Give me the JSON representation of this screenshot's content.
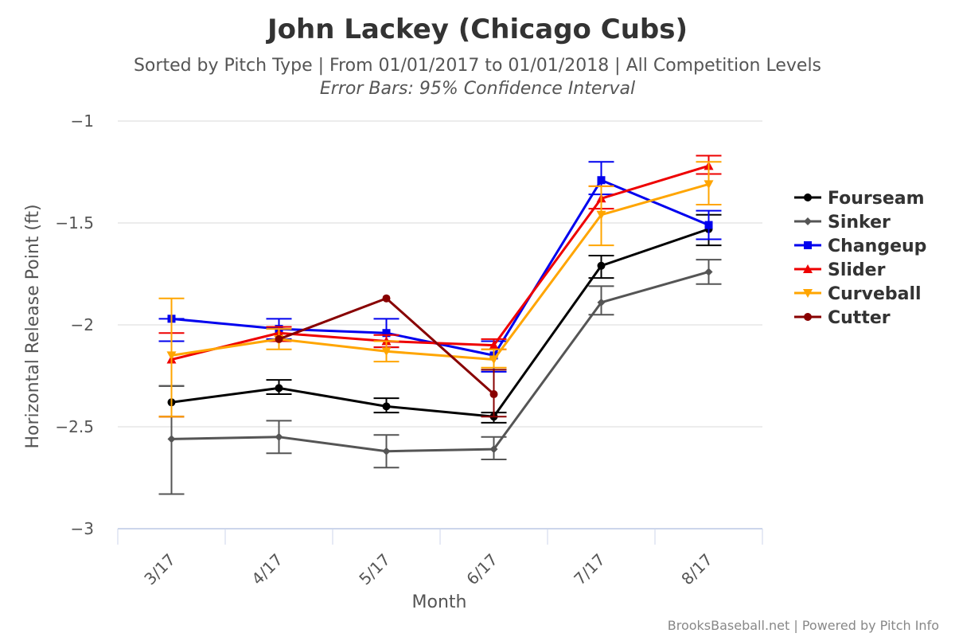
{
  "chart_data": {
    "type": "line",
    "title": "John Lackey (Chicago Cubs)",
    "subtitle": "Sorted by Pitch Type | From 01/01/2017 to 01/01/2018 | All Competition Levels",
    "subtitle2": "Error Bars: 95% Confidence Interval",
    "xlabel": "Month",
    "ylabel": "Horizontal Release Point (ft)",
    "credits": "BrooksBaseball.net | Powered by Pitch Info",
    "categories": [
      "3/17",
      "4/17",
      "5/17",
      "6/17",
      "7/17",
      "8/17"
    ],
    "ylim": [
      -3,
      -1
    ],
    "yticks": [
      -1,
      -1.5,
      -2,
      -2.5,
      -3
    ],
    "ytick_labels": [
      "−1",
      "−1.5",
      "−2",
      "−2.5",
      "−3"
    ],
    "grid": true,
    "legend_position": "right",
    "series": [
      {
        "name": "Fourseam",
        "color": "#000000",
        "marker": "circle",
        "values": [
          -2.38,
          -2.31,
          -2.4,
          -2.45,
          -1.71,
          -1.53
        ],
        "error_low": [
          -2.45,
          -2.34,
          -2.43,
          -2.48,
          -1.77,
          -1.61
        ],
        "error_high": [
          -2.3,
          -2.27,
          -2.36,
          -2.43,
          -1.66,
          -1.46
        ]
      },
      {
        "name": "Sinker",
        "color": "#555555",
        "marker": "diamond",
        "values": [
          -2.56,
          -2.55,
          -2.62,
          -2.61,
          -1.89,
          -1.74
        ],
        "error_low": [
          -2.83,
          -2.63,
          -2.7,
          -2.66,
          -1.95,
          -1.8
        ],
        "error_high": [
          -2.3,
          -2.47,
          -2.54,
          -2.55,
          -1.81,
          -1.68
        ]
      },
      {
        "name": "Changeup",
        "color": "#0000ee",
        "marker": "square",
        "values": [
          -1.97,
          -2.02,
          -2.04,
          -2.15,
          -1.29,
          -1.51
        ],
        "error_low": [
          -2.08,
          -2.07,
          -2.11,
          -2.23,
          -1.36,
          -1.58
        ],
        "error_high": [
          -1.97,
          -1.97,
          -1.97,
          -2.08,
          -1.2,
          -1.44
        ]
      },
      {
        "name": "Slider",
        "color": "#ee0000",
        "marker": "triangle",
        "values": [
          -2.17,
          -2.04,
          -2.08,
          -2.1,
          -1.38,
          -1.22
        ],
        "error_low": [
          -2.45,
          -2.08,
          -2.11,
          -2.12,
          -1.43,
          -1.26
        ],
        "error_high": [
          -2.04,
          -2.01,
          -2.05,
          -2.07,
          -1.32,
          -1.17
        ]
      },
      {
        "name": "Curveball",
        "color": "#ffa500",
        "marker": "triangle-down",
        "values": [
          -2.15,
          -2.07,
          -2.13,
          -2.17,
          -1.46,
          -1.31
        ],
        "error_low": [
          -2.45,
          -2.12,
          -2.18,
          -2.21,
          -1.61,
          -1.41
        ],
        "error_high": [
          -1.87,
          -2.02,
          -2.08,
          -2.12,
          -1.32,
          -1.2
        ]
      },
      {
        "name": "Cutter",
        "color": "#880000",
        "marker": "circle",
        "values": [
          null,
          -2.07,
          -1.87,
          -2.34,
          null,
          null
        ],
        "error_low": [
          null,
          -2.07,
          -1.87,
          -2.45,
          null,
          null
        ],
        "error_high": [
          null,
          -2.07,
          -1.87,
          -2.22,
          null,
          null
        ]
      }
    ]
  }
}
